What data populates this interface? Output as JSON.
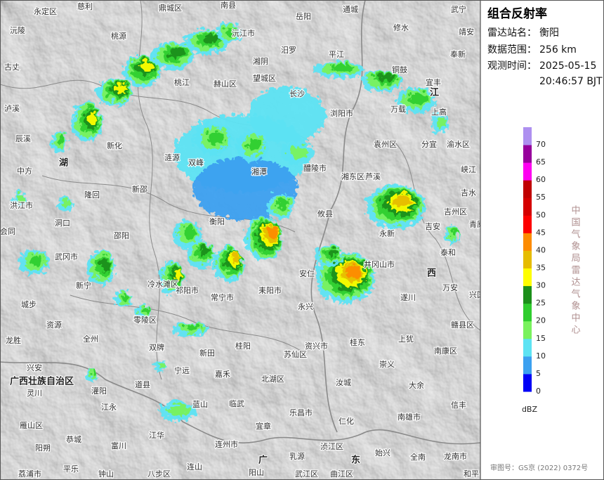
{
  "panel": {
    "title": "组合反射率",
    "station_label": "雷达站名：",
    "station": "衡阳",
    "range_label": "数据范围：",
    "range": "256 km",
    "time_label": "观测时间：",
    "date": "2025-05-15",
    "time": "20:46:57 BJT"
  },
  "legend": {
    "ticks": [
      0,
      5,
      10,
      15,
      20,
      25,
      30,
      35,
      40,
      45,
      50,
      55,
      60,
      65,
      70
    ],
    "colors": [
      "#0000f6",
      "#3ba0f0",
      "#5de3f3",
      "#79f25d",
      "#2fcd2e",
      "#1c8f1a",
      "#fefe00",
      "#e6bc00",
      "#fd8b00",
      "#fd0000",
      "#d50000",
      "#c00000",
      "#fe00f1",
      "#97009c",
      "#ae90f0"
    ],
    "unit": "dBZ"
  },
  "credit": "中国气象局雷达气象中心",
  "approval": "审图号：GS京 (2022) 0372号",
  "map": {
    "places": [
      "永定区",
      "慈利",
      "鼎城区",
      "南县",
      "岳阳",
      "通城",
      "武宁",
      "沅陵",
      "桃源",
      "沅江市",
      "湘阴",
      "汨罗",
      "平江",
      "修水",
      "靖安",
      "奉新",
      "古丈",
      "泸溪",
      "辰溪",
      "中方",
      "洪江市",
      "会同",
      "桃江",
      "赫山区",
      "望城区",
      "长沙",
      "浏阳市",
      "铜鼓",
      "宜丰",
      "万载",
      "上高",
      "新化",
      "涟源",
      "新邵",
      "隆回",
      "洞口",
      "邵阳",
      "双峰",
      "湘潭",
      "醴陵市",
      "湘东区",
      "袁州区",
      "分宜",
      "渝水区",
      "峡江",
      "芦溪",
      "吉水",
      "吉州区",
      "青原区",
      "吉安",
      "永新",
      "攸县",
      "衡阳",
      "泰和",
      "武冈市",
      "新宁",
      "城步",
      "冷水滩区",
      "祁阳市",
      "常宁市",
      "耒阳市",
      "安仁",
      "永兴",
      "井冈山市",
      "遂川",
      "万安",
      "兴国",
      "赣县区",
      "资源",
      "全州",
      "龙胜",
      "零陵区",
      "双牌",
      "新田",
      "桂阳",
      "资兴市",
      "桂东",
      "上犹",
      "南康区",
      "宁远",
      "嘉禾",
      "北湖区",
      "苏仙区",
      "汝城",
      "崇义",
      "大余",
      "兴安",
      "灵川",
      "灌阳",
      "道县",
      "临武",
      "江永",
      "蓝山",
      "宜章",
      "乐昌市",
      "仁化",
      "南雄市",
      "信丰",
      "雁山区",
      "恭城",
      "富川",
      "江华",
      "连州市",
      "乳源",
      "浈江区",
      "始兴",
      "全南",
      "龙南市",
      "阳朔",
      "荔浦市",
      "平乐",
      "钟山",
      "八步区",
      "连山",
      "阳山",
      "武江区",
      "曲江区",
      "和平"
    ],
    "regions": [
      "广西壮族自治区",
      "广",
      "东",
      "西",
      "江",
      "湖"
    ]
  }
}
